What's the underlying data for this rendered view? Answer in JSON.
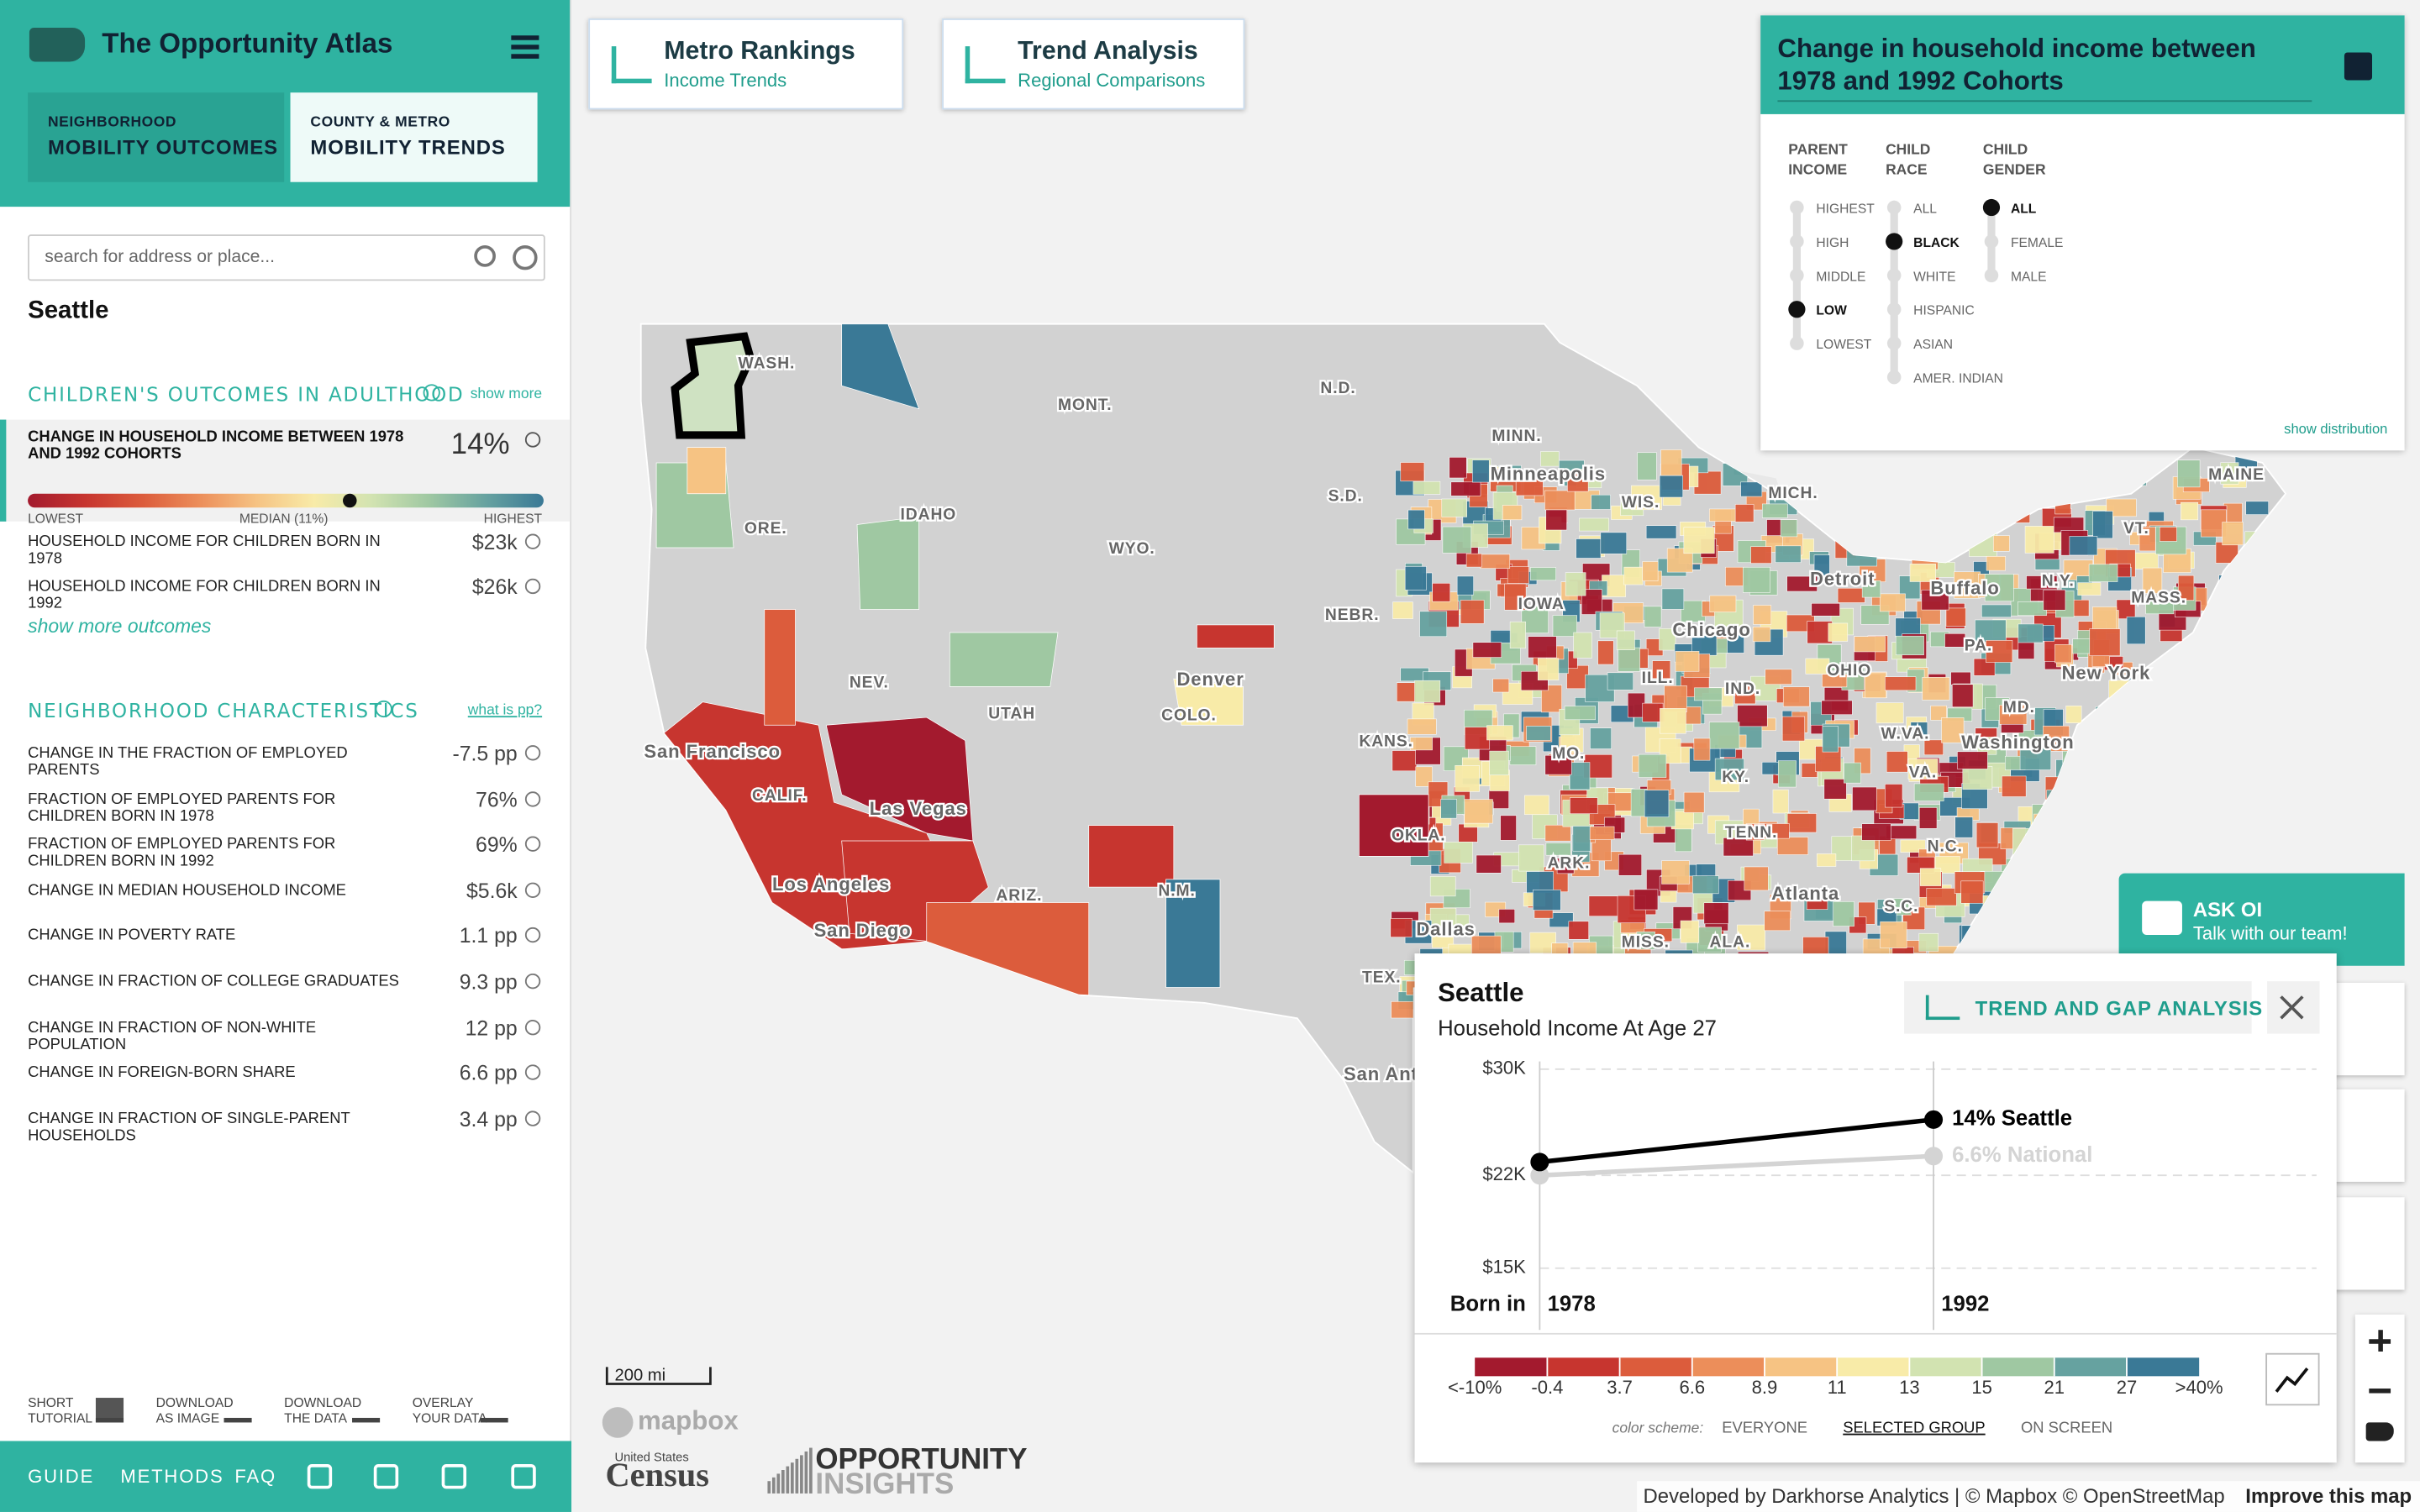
{
  "sidebar": {
    "brand": "The Opportunity Atlas",
    "tabs": [
      {
        "kicker": "NEIGHBORHOOD",
        "label": "MOBILITY OUTCOMES"
      },
      {
        "kicker": "COUNTY & METRO",
        "label": "MOBILITY TRENDS"
      }
    ],
    "selected_tab": 1,
    "search_placeholder": "search for address or place...",
    "place": "Seattle",
    "outcomes": {
      "heading": "CHILDREN'S OUTCOMES IN ADULTHOOD",
      "link": "show more",
      "selected": {
        "label": "CHANGE IN HOUSEHOLD INCOME BETWEEN 1978 AND 1992 COHORTS",
        "value": "14%"
      },
      "scale": {
        "low": "LOWEST",
        "median": "MEDIAN (11%)",
        "high": "HIGHEST"
      },
      "rows": [
        {
          "label": "HOUSEHOLD INCOME FOR CHILDREN BORN IN 1978",
          "value": "$23k"
        },
        {
          "label": "HOUSEHOLD INCOME FOR CHILDREN BORN IN 1992",
          "value": "$26k"
        }
      ],
      "more": "show more outcomes"
    },
    "characteristics": {
      "heading": "NEIGHBORHOOD CHARACTERISTICS",
      "link": "what is pp?",
      "rows": [
        {
          "label": "CHANGE IN THE FRACTION OF EMPLOYED PARENTS",
          "value": "-7.5 pp"
        },
        {
          "label": "FRACTION OF EMPLOYED PARENTS FOR CHILDREN BORN IN 1978",
          "value": "76%"
        },
        {
          "label": "FRACTION OF EMPLOYED PARENTS FOR CHILDREN BORN IN 1992",
          "value": "69%"
        },
        {
          "label": "CHANGE IN MEDIAN HOUSEHOLD INCOME",
          "value": "$5.6k"
        },
        {
          "label": "CHANGE IN POVERTY RATE",
          "value": "1.1 pp"
        },
        {
          "label": "CHANGE IN FRACTION OF COLLEGE GRADUATES",
          "value": "9.3 pp"
        },
        {
          "label": "CHANGE IN FRACTION OF NON-WHITE POPULATION",
          "value": "12 pp"
        },
        {
          "label": "CHANGE IN FOREIGN-BORN SHARE",
          "value": "6.6 pp"
        },
        {
          "label": "CHANGE IN FRACTION OF SINGLE-PARENT HOUSEHOLDS",
          "value": "3.4 pp"
        }
      ]
    },
    "tools": [
      "SHORT TUTORIAL",
      "DOWNLOAD AS IMAGE",
      "DOWNLOAD THE DATA",
      "OVERLAY YOUR DATA"
    ],
    "footer_links": [
      "GUIDE",
      "METHODS",
      "FAQ"
    ]
  },
  "top_buttons": [
    {
      "title": "Metro Rankings",
      "subtitle": "Income Trends"
    },
    {
      "title": "Trend Analysis",
      "subtitle": "Regional Comparisons"
    }
  ],
  "filter_panel": {
    "title": "Change in household income between 1978 and 1992 Cohorts",
    "groups": [
      {
        "label": "PARENT INCOME",
        "options": [
          "HIGHEST",
          "HIGH",
          "MIDDLE",
          "LOW",
          "LOWEST"
        ],
        "selected": 3
      },
      {
        "label": "CHILD RACE",
        "options": [
          "ALL",
          "BLACK",
          "WHITE",
          "HISPANIC",
          "ASIAN",
          "AMER. INDIAN"
        ],
        "selected": 1
      },
      {
        "label": "CHILD GENDER",
        "options": [
          "ALL",
          "FEMALE",
          "MALE"
        ],
        "selected": 0
      }
    ],
    "link": "show distribution"
  },
  "map": {
    "labels": [
      "WASH.",
      "MONT.",
      "N.D.",
      "MINN.",
      "Minneapolis",
      "MICH.",
      "MAINE",
      "VT.",
      "N.Y.",
      "MASS.",
      "Buffalo",
      "Detroit",
      "ORE.",
      "IDAHO",
      "WYO.",
      "S.D.",
      "WIS.",
      "IOWA",
      "NEBR.",
      "Chicago",
      "PA.",
      "OHIO",
      "New York",
      "NEV.",
      "UTAH",
      "COLO.",
      "Denver",
      "ILL.",
      "IND.",
      "KANS.",
      "MO.",
      "W.VA.",
      "VA.",
      "MD.",
      "Washington",
      "KY.",
      "San Francisco",
      "CALIF.",
      "Las Vegas",
      "OKLA.",
      "TENN.",
      "N.C.",
      "ARK.",
      "Atlanta",
      "S.C.",
      "Los Angeles",
      "N.M.",
      "ARIZ.",
      "MISS.",
      "ALA.",
      "San Diego",
      "Dallas",
      "TEX.",
      "San Anto"
    ],
    "scale_bar": "200 mi",
    "mapbox": "mapbox",
    "census": "Census",
    "census_sub": "United States",
    "opportunity": [
      "OPPORTUNITY",
      "INSIGHTS"
    ],
    "attribution": "Developed by Darkhorse Analytics | © Mapbox © OpenStreetMap",
    "improve": "Improve this map"
  },
  "chat": {
    "title": "ASK OI",
    "subtitle": "Talk with our team!"
  },
  "popup": {
    "title": "Seattle",
    "subtitle": "Household Income At Age 27",
    "button": "TREND AND GAP ANALYSIS",
    "chart_data": {
      "type": "line",
      "x_label": "Born in",
      "x": [
        1978,
        1992
      ],
      "ylim": [
        15000,
        30000
      ],
      "yticks": [
        {
          "value": 15000,
          "label": "$15K"
        },
        {
          "value": 22000,
          "label": "$22K"
        },
        {
          "value": 30000,
          "label": "$30K"
        }
      ],
      "series": [
        {
          "name": "National",
          "color": "#d4d4d4",
          "values": [
            22000,
            23450
          ],
          "end_label": "6.6% National"
        },
        {
          "name": "Seattle",
          "color": "#000000",
          "values": [
            23000,
            26200
          ],
          "end_label": "14% Seattle"
        }
      ]
    },
    "legend": {
      "labels": [
        "<-10%",
        "-0.4",
        "3.7",
        "6.6",
        "8.9",
        "11",
        "13",
        "15",
        "21",
        "27",
        ">40%"
      ],
      "colors": [
        "#a31a2e",
        "#c7352f",
        "#dc5c3c",
        "#ec8e5a",
        "#f6c383",
        "#f8eba8",
        "#d2e3b1",
        "#9fc8a2",
        "#66a2a0",
        "#3a7996"
      ]
    },
    "color_scheme": {
      "label": "color scheme:",
      "options": [
        "EVERYONE",
        "SELECTED GROUP",
        "ON SCREEN"
      ],
      "selected": 1
    }
  }
}
